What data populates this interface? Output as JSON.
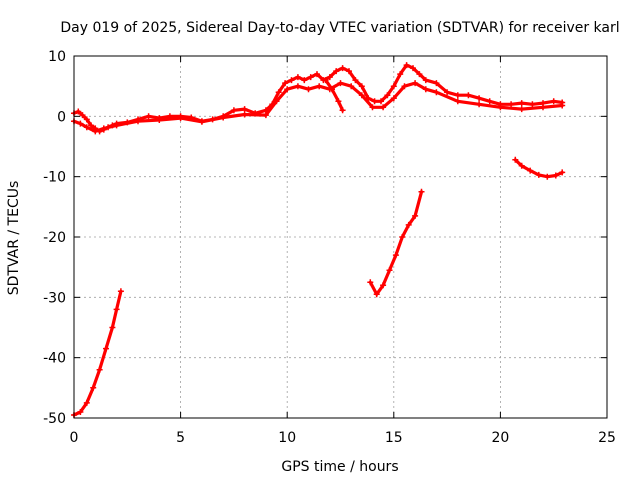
{
  "chart_data": {
    "type": "line",
    "title": "Day 019 of 2025, Sidereal Day-to-day VTEC variation (SDTVAR) for receiver karl",
    "xlabel": "GPS time / hours",
    "ylabel": "SDTVAR / TECUs",
    "xlim": [
      0,
      25
    ],
    "ylim": [
      -50,
      10
    ],
    "xticks": [
      0,
      5,
      10,
      15,
      20,
      25
    ],
    "yticks": [
      -50,
      -40,
      -30,
      -20,
      -10,
      0,
      10
    ],
    "xtick_labels": [
      "0",
      "5",
      "10",
      "15",
      "20",
      "25"
    ],
    "ytick_labels": [
      "-50",
      "-40",
      "-30",
      "-20",
      "-10",
      "0",
      "10"
    ],
    "grid": true,
    "series": [
      {
        "name": "main-trace",
        "color": "#ff0000",
        "points": [
          [
            0.0,
            0.5
          ],
          [
            0.2,
            0.8
          ],
          [
            0.4,
            0.2
          ],
          [
            0.6,
            -0.5
          ],
          [
            0.8,
            -1.5
          ],
          [
            1.0,
            -2.0
          ],
          [
            1.2,
            -2.5
          ],
          [
            1.4,
            -2.2
          ],
          [
            1.6,
            -1.8
          ],
          [
            1.8,
            -1.5
          ],
          [
            2.0,
            -1.2
          ],
          [
            2.5,
            -1.0
          ],
          [
            3.0,
            -0.5
          ],
          [
            3.5,
            0.0
          ],
          [
            4.0,
            -0.3
          ],
          [
            4.5,
            0.0
          ],
          [
            5.0,
            0.0
          ],
          [
            5.5,
            -0.2
          ],
          [
            6.0,
            -0.8
          ],
          [
            6.5,
            -0.5
          ],
          [
            7.0,
            0.0
          ],
          [
            7.5,
            1.0
          ],
          [
            8.0,
            1.2
          ],
          [
            8.5,
            0.5
          ],
          [
            9.0,
            1.0
          ],
          [
            9.3,
            2.0
          ],
          [
            9.6,
            4.0
          ],
          [
            9.9,
            5.5
          ],
          [
            10.2,
            6.0
          ],
          [
            10.5,
            6.5
          ],
          [
            10.8,
            6.0
          ],
          [
            11.1,
            6.5
          ],
          [
            11.4,
            7.0
          ],
          [
            11.7,
            6.0
          ],
          [
            12.0,
            6.5
          ],
          [
            12.3,
            7.5
          ],
          [
            12.6,
            8.0
          ],
          [
            12.9,
            7.5
          ],
          [
            13.2,
            6.0
          ],
          [
            13.5,
            5.0
          ],
          [
            13.8,
            3.0
          ],
          [
            14.1,
            2.5
          ],
          [
            14.4,
            2.5
          ],
          [
            14.7,
            3.5
          ],
          [
            15.0,
            5.0
          ],
          [
            15.3,
            7.0
          ],
          [
            15.6,
            8.5
          ],
          [
            15.9,
            8.0
          ],
          [
            16.2,
            7.0
          ],
          [
            16.5,
            6.0
          ],
          [
            17.0,
            5.5
          ],
          [
            17.5,
            4.0
          ],
          [
            18.0,
            3.5
          ],
          [
            18.5,
            3.5
          ],
          [
            19.0,
            3.0
          ],
          [
            19.5,
            2.5
          ],
          [
            20.0,
            2.0
          ],
          [
            20.5,
            2.0
          ],
          [
            21.0,
            2.2
          ],
          [
            21.5,
            2.0
          ],
          [
            22.0,
            2.2
          ],
          [
            22.5,
            2.5
          ],
          [
            22.9,
            2.3
          ]
        ]
      },
      {
        "name": "main-trace-lower-band",
        "color": "#ff0000",
        "points": [
          [
            0.0,
            -0.8
          ],
          [
            0.3,
            -1.2
          ],
          [
            0.6,
            -1.8
          ],
          [
            1.0,
            -2.5
          ],
          [
            1.4,
            -2.0
          ],
          [
            2.0,
            -1.5
          ],
          [
            3.0,
            -0.8
          ],
          [
            4.0,
            -0.6
          ],
          [
            5.0,
            -0.3
          ],
          [
            6.0,
            -0.9
          ],
          [
            7.0,
            -0.2
          ],
          [
            8.0,
            0.3
          ],
          [
            9.0,
            0.2
          ],
          [
            9.5,
            2.5
          ],
          [
            10.0,
            4.5
          ],
          [
            10.5,
            5.0
          ],
          [
            11.0,
            4.5
          ],
          [
            11.5,
            5.0
          ],
          [
            12.0,
            4.5
          ],
          [
            12.5,
            5.5
          ],
          [
            13.0,
            5.0
          ],
          [
            13.5,
            3.5
          ],
          [
            14.0,
            1.5
          ],
          [
            14.5,
            1.5
          ],
          [
            15.0,
            3.0
          ],
          [
            15.5,
            5.0
          ],
          [
            16.0,
            5.5
          ],
          [
            16.5,
            4.5
          ],
          [
            17.0,
            4.0
          ],
          [
            18.0,
            2.5
          ],
          [
            19.0,
            2.0
          ],
          [
            20.0,
            1.5
          ],
          [
            21.0,
            1.2
          ],
          [
            22.0,
            1.5
          ],
          [
            22.9,
            1.8
          ]
        ]
      },
      {
        "name": "spike-segment-12h",
        "color": "#ff0000",
        "points": [
          [
            11.8,
            6.0
          ],
          [
            12.1,
            4.5
          ],
          [
            12.4,
            2.5
          ],
          [
            12.6,
            1.0
          ]
        ]
      },
      {
        "name": "early-rising-segment",
        "color": "#ff0000",
        "points": [
          [
            0.0,
            -49.5
          ],
          [
            0.3,
            -49.0
          ],
          [
            0.6,
            -47.5
          ],
          [
            0.9,
            -45.0
          ],
          [
            1.2,
            -42.0
          ],
          [
            1.5,
            -38.5
          ],
          [
            1.8,
            -35.0
          ],
          [
            2.0,
            -32.0
          ],
          [
            2.2,
            -29.0
          ]
        ]
      },
      {
        "name": "mid-rising-segment",
        "color": "#ff0000",
        "points": [
          [
            13.9,
            -27.5
          ],
          [
            14.2,
            -29.5
          ],
          [
            14.5,
            -28.0
          ],
          [
            14.8,
            -25.5
          ],
          [
            15.1,
            -23.0
          ],
          [
            15.4,
            -20.0
          ],
          [
            15.7,
            -18.0
          ],
          [
            16.0,
            -16.5
          ],
          [
            16.3,
            -12.5
          ]
        ]
      },
      {
        "name": "late-dip-segment",
        "color": "#ff0000",
        "points": [
          [
            20.7,
            -7.2
          ],
          [
            21.0,
            -8.2
          ],
          [
            21.4,
            -9.0
          ],
          [
            21.8,
            -9.7
          ],
          [
            22.2,
            -10.0
          ],
          [
            22.6,
            -9.8
          ],
          [
            22.9,
            -9.3
          ]
        ]
      }
    ]
  }
}
